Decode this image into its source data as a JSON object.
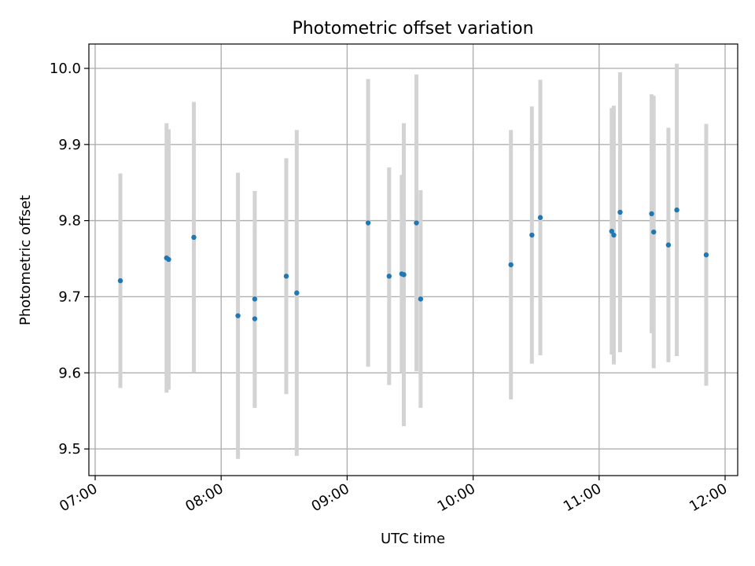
{
  "chart_data": {
    "type": "scatter",
    "title": "Photometric offset variation",
    "xlabel": "UTC time",
    "ylabel": "Photometric offset",
    "grid": true,
    "x_ticks": [
      "07:00",
      "08:00",
      "09:00",
      "10:00",
      "11:00",
      "12:00"
    ],
    "y_ticks": [
      "9.5",
      "9.6",
      "9.7",
      "9.8",
      "9.9",
      "10.0"
    ],
    "xlim": [
      "06:57",
      "12:06"
    ],
    "ylim": [
      9.465,
      10.032
    ],
    "colors": {
      "points": "#1f77b4",
      "errorbars": "#d3d3d3",
      "grid": "#b0b0b0"
    },
    "points": [
      {
        "x": "07:12",
        "y": 9.721,
        "err": 0.141
      },
      {
        "x": "07:34",
        "y": 9.751,
        "err": 0.177
      },
      {
        "x": "07:35",
        "y": 9.749,
        "err": 0.171
      },
      {
        "x": "07:47",
        "y": 9.778,
        "err": 0.178
      },
      {
        "x": "08:08",
        "y": 9.675,
        "err": 0.188
      },
      {
        "x": "08:16",
        "y": 9.697,
        "err": 0.142
      },
      {
        "x": "08:16",
        "y": 9.671,
        "err": 0.117
      },
      {
        "x": "08:31",
        "y": 9.727,
        "err": 0.155
      },
      {
        "x": "08:36",
        "y": 9.705,
        "err": 0.214
      },
      {
        "x": "09:10",
        "y": 9.797,
        "err": 0.189
      },
      {
        "x": "09:20",
        "y": 9.727,
        "err": 0.143
      },
      {
        "x": "09:26",
        "y": 9.73,
        "err": 0.13
      },
      {
        "x": "09:27",
        "y": 9.729,
        "err": 0.199
      },
      {
        "x": "09:33",
        "y": 9.797,
        "err": 0.195
      },
      {
        "x": "09:35",
        "y": 9.697,
        "err": 0.143
      },
      {
        "x": "10:18",
        "y": 9.742,
        "err": 0.177
      },
      {
        "x": "10:28",
        "y": 9.781,
        "err": 0.169
      },
      {
        "x": "10:32",
        "y": 9.804,
        "err": 0.181
      },
      {
        "x": "11:06",
        "y": 9.786,
        "err": 0.162
      },
      {
        "x": "11:07",
        "y": 9.781,
        "err": 0.17
      },
      {
        "x": "11:10",
        "y": 9.811,
        "err": 0.184
      },
      {
        "x": "11:25",
        "y": 9.809,
        "err": 0.157
      },
      {
        "x": "11:26",
        "y": 9.785,
        "err": 0.179
      },
      {
        "x": "11:33",
        "y": 9.768,
        "err": 0.154
      },
      {
        "x": "11:37",
        "y": 9.814,
        "err": 0.192
      },
      {
        "x": "11:51",
        "y": 9.755,
        "err": 0.172
      }
    ]
  }
}
